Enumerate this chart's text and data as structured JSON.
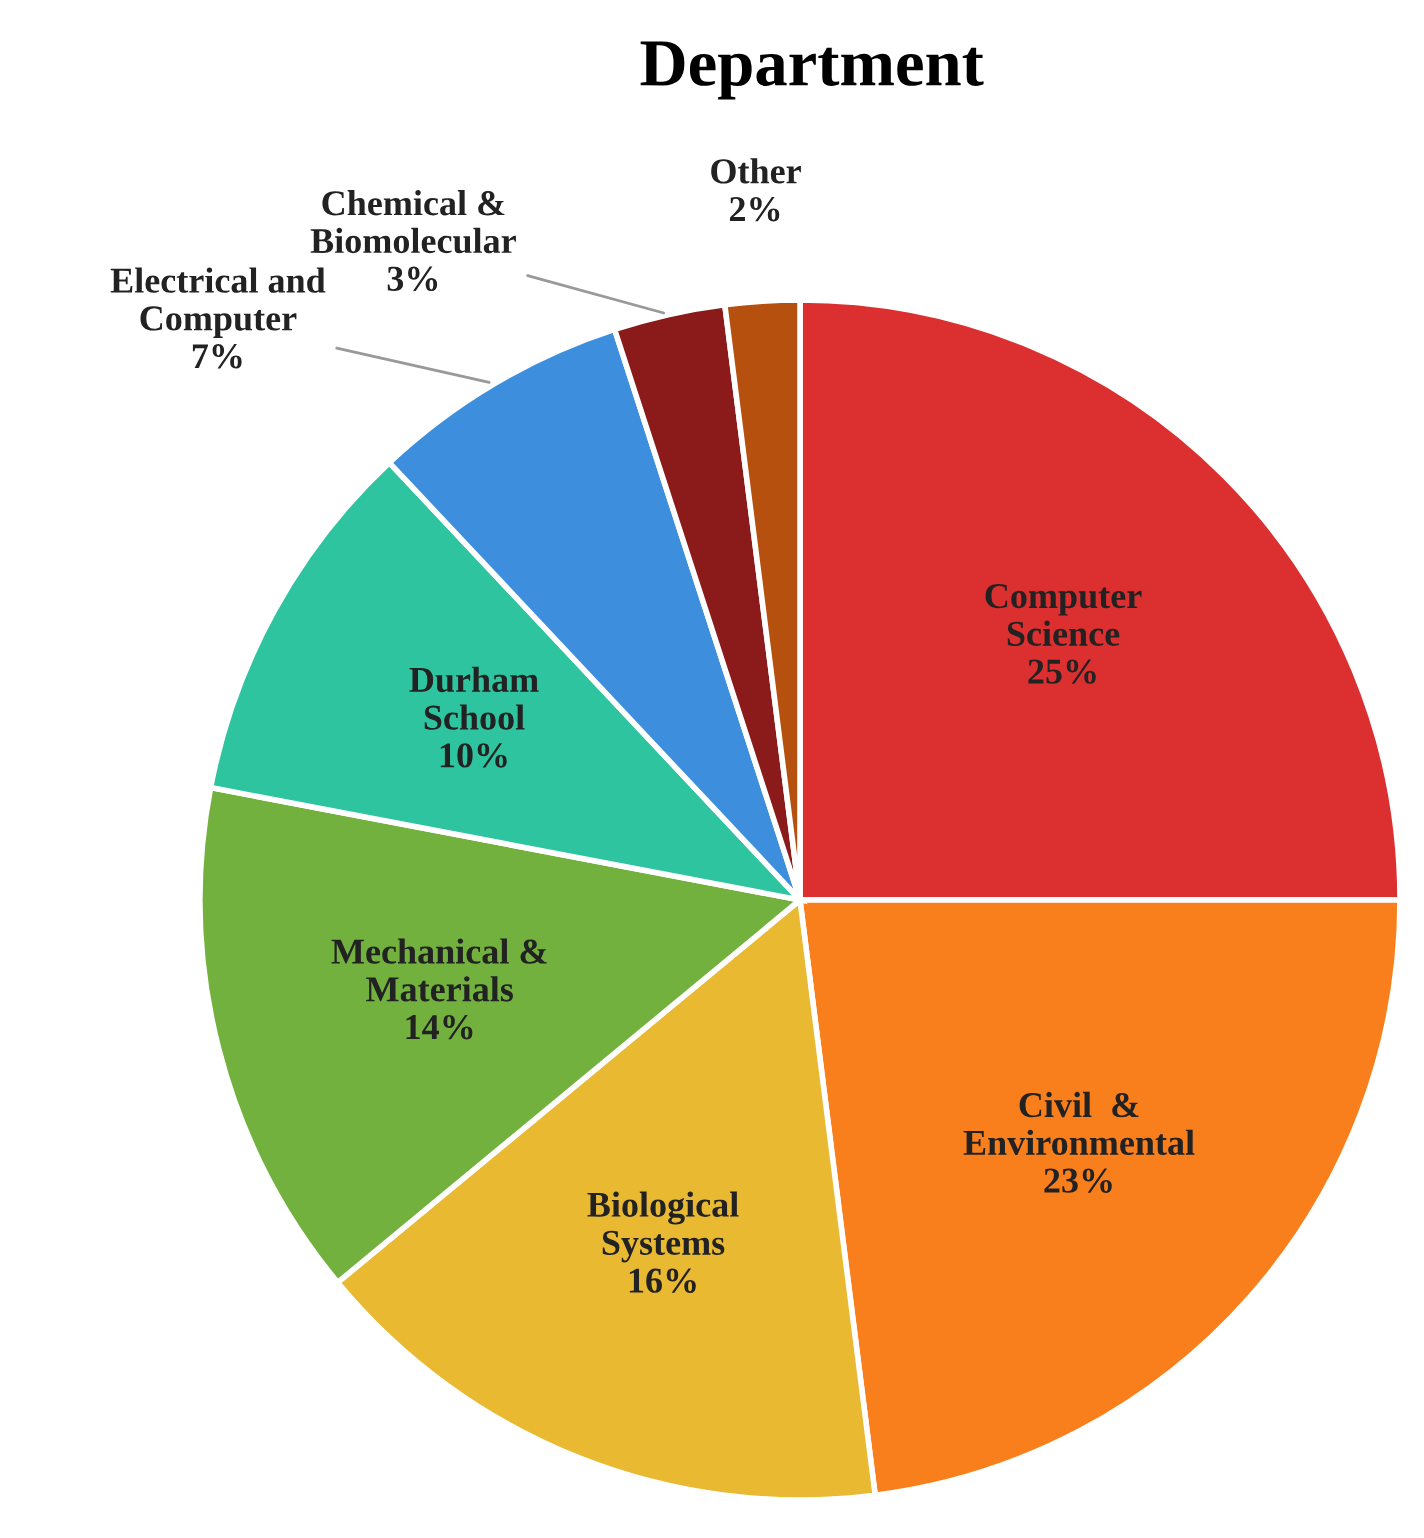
{
  "chart_data": {
    "type": "pie",
    "title": "Department",
    "categories": [
      "Computer\nScience",
      "Civil  &\nEnvironmental",
      "Biological\nSystems",
      "Mechanical &\nMaterials",
      "Durham\nSchool",
      "Electrical and\nComputer",
      "Chemical &\nBiomolecular",
      "Other"
    ],
    "values": [
      25,
      23,
      16,
      14,
      10,
      7,
      3,
      2
    ],
    "value_labels": [
      "25%",
      "23%",
      "16%",
      "14%",
      "10%",
      "7%",
      "3%",
      "2%"
    ],
    "colors": [
      "#dc2f2f",
      "#f97f1c",
      "#e8b931",
      "#72b13e",
      "#2ec4a0",
      "#3d8fdd",
      "#8b1a1a",
      "#b5500f"
    ]
  }
}
